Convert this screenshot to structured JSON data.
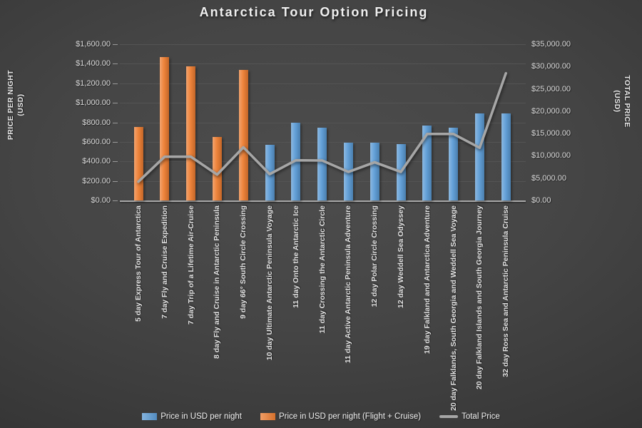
{
  "title": "Antarctica Tour Option Pricing",
  "left_axis": {
    "title_line1": "PRICE PER NIGHT",
    "title_line2": "(USD)",
    "ticks": [
      "$1,600.00",
      "$1,400.00",
      "$1,200.00",
      "$1,000.00",
      "$800.00",
      "$600.00",
      "$400.00",
      "$200.00",
      "$0.00"
    ]
  },
  "right_axis": {
    "title_line1": "TOTAL PRICE",
    "title_line2": "(USD)",
    "ticks": [
      "$35,000.00",
      "$30,000.00",
      "$25,000.00",
      "$20,000.00",
      "$15,000.00",
      "$10,000.00",
      "$5,000.00",
      "$0.00"
    ]
  },
  "legend": [
    {
      "label": "Price in USD per night",
      "type": "bar",
      "color": "#5B9BD5"
    },
    {
      "label": "Price in USD per night (Flight + Cruise)",
      "type": "bar",
      "color": "#ED7D31"
    },
    {
      "label": "Total Price",
      "type": "line",
      "color": "#A6A6A6"
    }
  ],
  "colors": {
    "blue_bar": "#5B9BD5",
    "orange_bar": "#ED7D31",
    "line_gray": "#A6A6A6",
    "gridline": "#545454",
    "axis_line": "#A8A8A8",
    "background_center": "#4D4D4D",
    "background_edge": "#262626",
    "text": "#EFEFEF"
  },
  "chart_data": {
    "type": "bar",
    "subtype": "bar+line combo, dual axis",
    "title": "Antarctica Tour Option Pricing",
    "left_axis_label": "PRICE PER NIGHT (USD)",
    "right_axis_label": "TOTAL PRICE (USD)",
    "left_ylim": [
      0,
      1600
    ],
    "right_ylim": [
      0,
      35000
    ],
    "left_tick_step": 200,
    "right_tick_step": 5000,
    "grid": true,
    "legend_position": "bottom",
    "categories": [
      "5 day Express Tour of Antarctica",
      "7 day Fly and Cruise Expedition",
      "7 day Trip of a Lifetime Air-Cruise",
      "8 day Fly and Cruise in Antarctic Peninsula",
      "9 day 66° South Circle Crossing",
      "10 day Ultimate Antarctic Peninsula Voyage",
      "11 day Onto the Antarctic Ice",
      "11 day Crossing the Antarctic Circle",
      "11 day Active Antarctic Peninsula Adventure",
      "12 day Polar Circle Crossing",
      "12 day Weddell Sea Odyssey",
      "19 day Falkland and Antarctica Adventure",
      "20 day Falklands, South Georgia and Weddell Sea Voyage",
      "20 day Falkland Islands and South Georgia Journey",
      "32 day Ross Sea and Antarctic Peninsula Cruise"
    ],
    "series": [
      {
        "name": "Price in USD per night",
        "type": "bar",
        "axis": "left",
        "color": "#5B9BD5",
        "values": [
          null,
          null,
          null,
          null,
          null,
          570,
          795,
          745,
          595,
          595,
          575,
          770,
          745,
          890,
          890
        ]
      },
      {
        "name": "Price in USD per night (Flight + Cruise)",
        "type": "bar",
        "axis": "left",
        "color": "#ED7D31",
        "values": [
          750,
          1470,
          1375,
          650,
          1340,
          null,
          null,
          null,
          null,
          null,
          null,
          null,
          null,
          null,
          null
        ]
      },
      {
        "name": "Total Price",
        "type": "line",
        "axis": "right",
        "color": "#A6A6A6",
        "values": [
          4200,
          9800,
          9800,
          5800,
          11900,
          5900,
          9000,
          8950,
          6400,
          8550,
          6400,
          14900,
          14900,
          11800,
          28500
        ]
      }
    ]
  }
}
